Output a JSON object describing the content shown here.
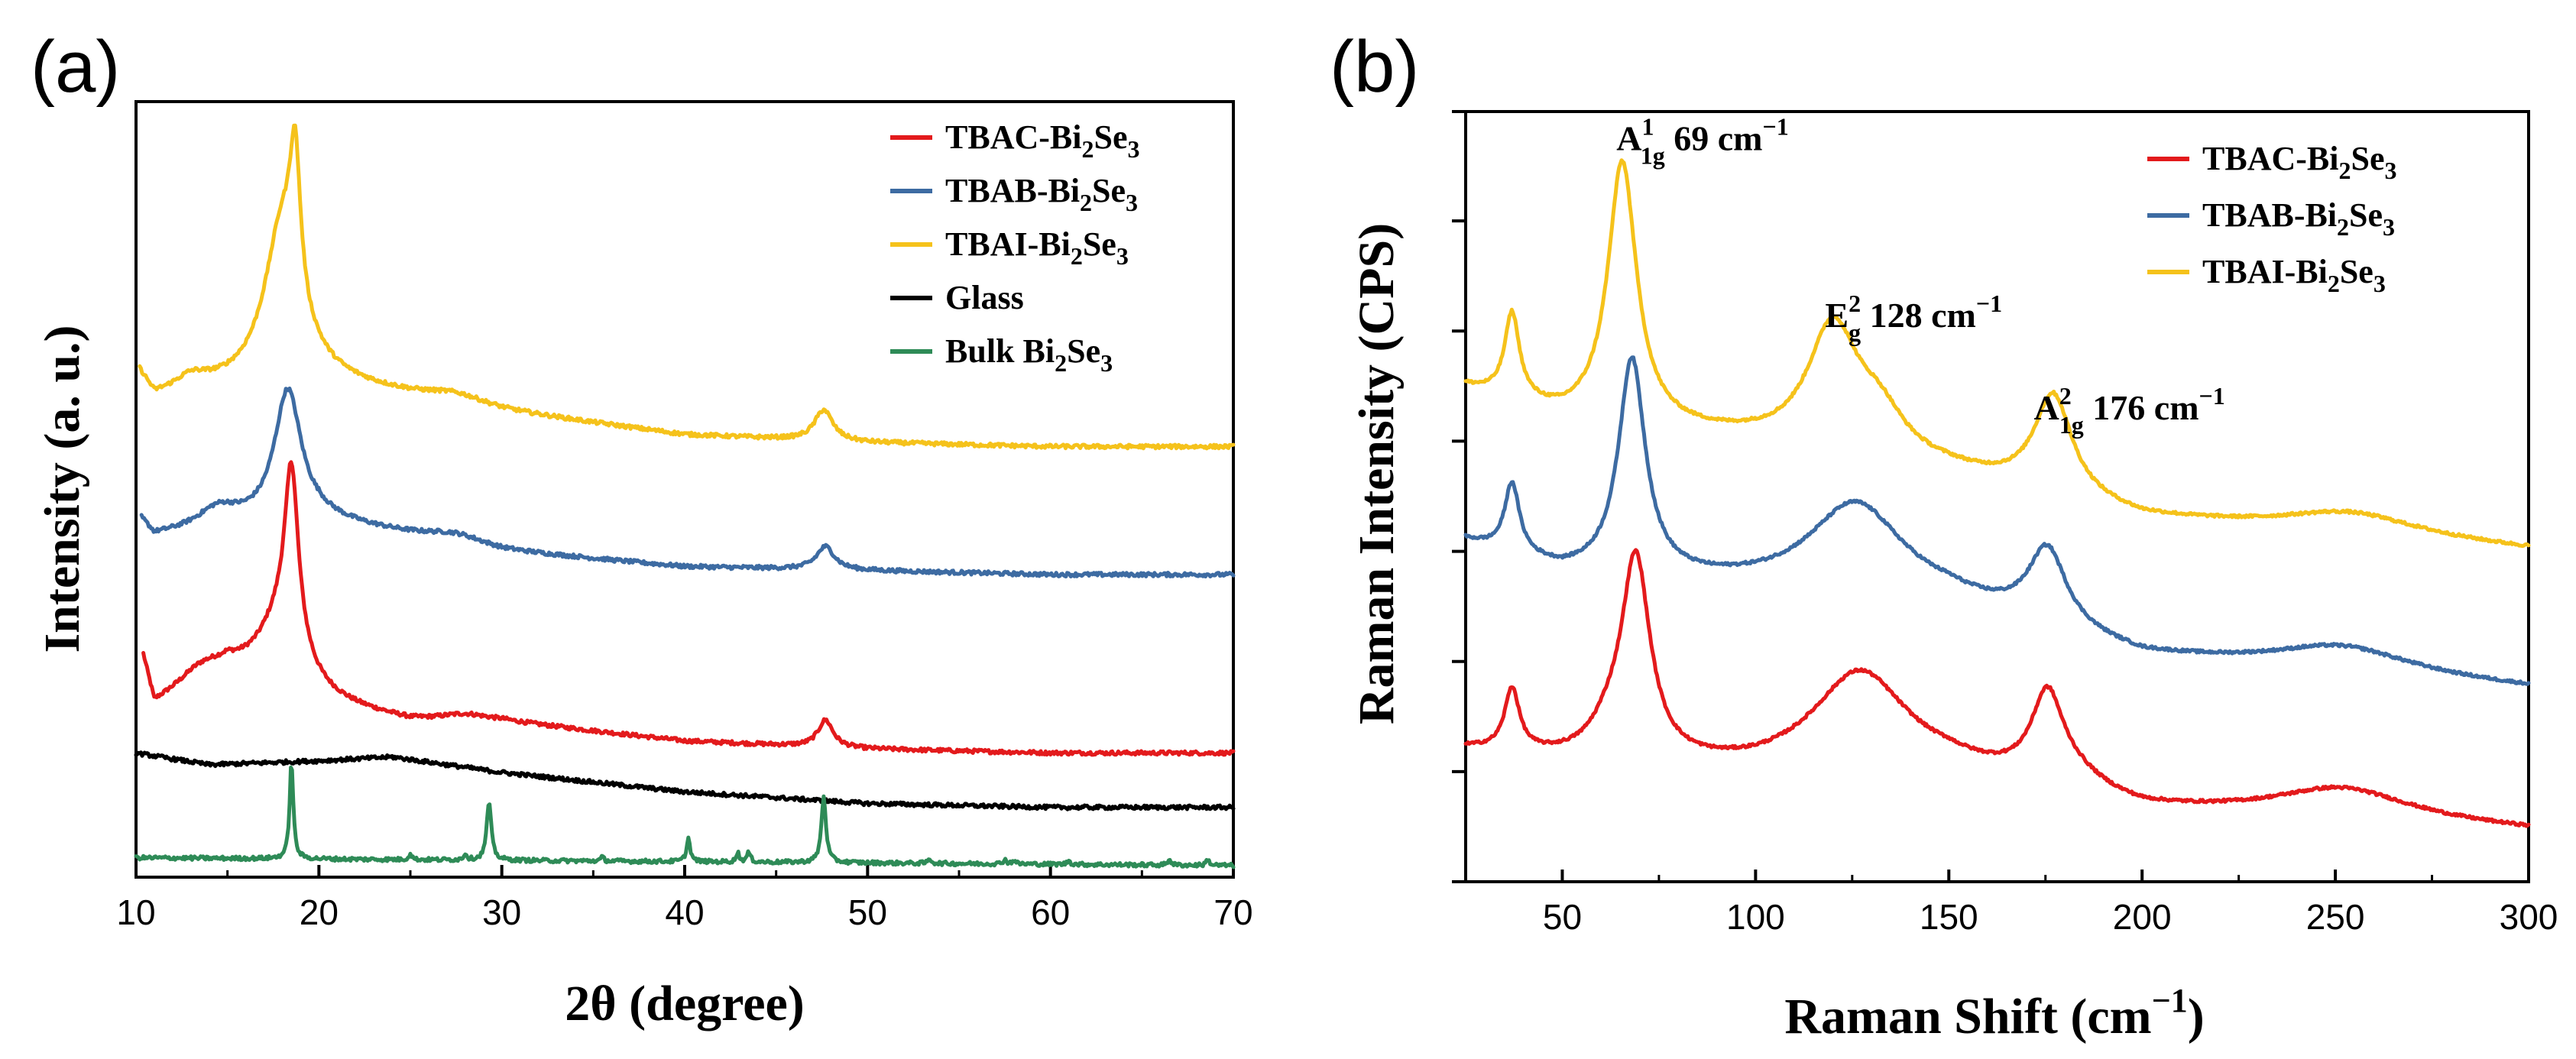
{
  "figure": {
    "panel_a_label": "(a)",
    "panel_b_label": "(b)"
  },
  "chart_data": [
    {
      "type": "line",
      "panel": "(a)",
      "xlabel": "2θ (degree)",
      "ylabel": "Intensity (a. u.)",
      "xlim": [
        10,
        70
      ],
      "ylim": [
        0,
        100
      ],
      "xticks": [
        10,
        20,
        30,
        40,
        50,
        60,
        70
      ],
      "show_y_tick_labels": false,
      "legend": {
        "placement": "top-right"
      },
      "series": [
        {
          "key": "tbac",
          "name": "TBAC-Bi2Se3",
          "color": "#e31a1c",
          "peaks": [
            [
              18.5,
              22,
              0.45
            ],
            [
              18.0,
              9,
              1.6
            ],
            [
              13.5,
              2,
              1.5
            ],
            [
              28,
              0.8,
              1.5
            ],
            [
              47.7,
              3.5,
              0.5
            ]
          ],
          "base": [
            [
              10.4,
              28
            ],
            [
              11,
              22
            ],
            [
              13,
              24
            ],
            [
              15,
              26
            ],
            [
              20,
              22
            ],
            [
              25,
              20
            ],
            [
              30,
              20
            ],
            [
              40,
              17.5
            ],
            [
              50,
              16.5
            ],
            [
              60,
              16
            ],
            [
              70,
              16
            ]
          ]
        },
        {
          "key": "tbab",
          "name": "TBAB-Bi2Se3",
          "color": "#3d6ba2",
          "peaks": [
            [
              18.3,
              17,
              0.9
            ],
            [
              14.5,
              2.5,
              1.4
            ],
            [
              27.5,
              1.2,
              2
            ],
            [
              47.7,
              3,
              0.6
            ]
          ],
          "base": [
            [
              10.3,
              46
            ],
            [
              11,
              44
            ],
            [
              15,
              45
            ],
            [
              20,
              46
            ],
            [
              25,
              44
            ],
            [
              30,
              42
            ],
            [
              40,
              40
            ],
            [
              50,
              39.5
            ],
            [
              60,
              39
            ],
            [
              70,
              39
            ]
          ]
        },
        {
          "key": "tbai",
          "name": "TBAI-Bi2Se3",
          "color": "#f5c21b",
          "peaks": [
            [
              18.7,
              18,
              0.35
            ],
            [
              18.0,
              20,
              1.2
            ],
            [
              13,
              1.5,
              1
            ],
            [
              27.5,
              1.2,
              2
            ],
            [
              47.6,
              4,
              0.6
            ]
          ],
          "base": [
            [
              10.2,
              65
            ],
            [
              11,
              62
            ],
            [
              14,
              63
            ],
            [
              20,
              64
            ],
            [
              25,
              62
            ],
            [
              30,
              60
            ],
            [
              40,
              57
            ],
            [
              50,
              56
            ],
            [
              60,
              55.5
            ],
            [
              70,
              55.5
            ]
          ]
        },
        {
          "key": "glass",
          "name": "Glass",
          "color": "#000000",
          "peaks": [],
          "base": [
            [
              10,
              16
            ],
            [
              14,
              14.5
            ],
            [
              20,
              15
            ],
            [
              24,
              15.5
            ],
            [
              30,
              13.5
            ],
            [
              40,
              11
            ],
            [
              50,
              9.5
            ],
            [
              60,
              9
            ],
            [
              70,
              9
            ]
          ]
        },
        {
          "key": "bulk",
          "name": "Bulk Bi2Se3",
          "color": "#2e8b57",
          "peaks": [
            [
              18.5,
              12.5,
              0.12
            ],
            [
              29.3,
              7.5,
              0.15
            ],
            [
              47.6,
              8.5,
              0.15
            ],
            [
              40.2,
              3,
              0.12
            ],
            [
              43.5,
              1.2,
              0.12
            ],
            [
              42.9,
              1.2,
              0.1
            ],
            [
              25,
              0.8,
              0.1
            ],
            [
              28,
              0.8,
              0.1
            ],
            [
              35.5,
              0.5,
              0.1
            ],
            [
              53.4,
              0.6,
              0.1
            ],
            [
              57.5,
              0.6,
              0.1
            ],
            [
              58,
              0.5,
              0.1
            ],
            [
              61,
              0.5,
              0.1
            ],
            [
              66.5,
              0.8,
              0.1
            ],
            [
              68.6,
              0.8,
              0.1
            ]
          ],
          "base": [
            [
              10,
              2.5
            ],
            [
              70,
              1.5
            ]
          ]
        }
      ]
    },
    {
      "type": "line",
      "panel": "(b)",
      "xlabel": "Raman Shift (cm−1)",
      "ylabel": "Raman Intensity (CPS)",
      "xlim": [
        25,
        300
      ],
      "ylim": [
        0,
        100
      ],
      "xticks": [
        50,
        100,
        150,
        200,
        250,
        300
      ],
      "show_y_tick_labels": false,
      "legend": {
        "placement": "top-right"
      },
      "annotations": [
        {
          "mode": "A",
          "sup": "1",
          "sub": "1g",
          "value": "69 cm",
          "exp": "−1",
          "at": [
            64,
            95
          ]
        },
        {
          "mode": "E",
          "sup": "2",
          "sub": "g",
          "value": "128 cm",
          "exp": "−1",
          "at": [
            118,
            72
          ]
        },
        {
          "mode": "A",
          "sup": "2",
          "sub": "1g",
          "value": "176 cm",
          "exp": "−1",
          "at": [
            172,
            60
          ]
        }
      ],
      "series": [
        {
          "key": "tbac",
          "name": "TBAC-Bi2Se3",
          "color": "#e31a1c",
          "peaks": [
            [
              37,
              8,
              2.3
            ],
            [
              69,
              26,
              4.5
            ],
            [
              62,
              3,
              6
            ],
            [
              127,
              13,
              15
            ],
            [
              175.5,
              11,
              5
            ],
            [
              182,
              2,
              10
            ],
            [
              252,
              4,
              22
            ]
          ],
          "base": [
            [
              25,
              17
            ],
            [
              60,
              15
            ],
            [
              100,
              14
            ],
            [
              150,
              14
            ],
            [
              200,
              9
            ],
            [
              250,
              8
            ],
            [
              300,
              6.5
            ]
          ]
        },
        {
          "key": "tbab",
          "name": "TBAB-Bi2Se3",
          "color": "#3d6ba2",
          "peaks": [
            [
              37,
              9,
              2.3
            ],
            [
              68,
              28,
              4.2
            ],
            [
              126,
              12,
              15
            ],
            [
              175.5,
              10,
              6
            ],
            [
              252,
              3.5,
              22
            ]
          ],
          "base": [
            [
              25,
              44
            ],
            [
              50,
              40
            ],
            [
              100,
              38
            ],
            [
              150,
              36
            ],
            [
              200,
              29
            ],
            [
              250,
              27
            ],
            [
              300,
              25
            ]
          ]
        },
        {
          "key": "tbai",
          "name": "TBAI-Bi2Se3",
          "color": "#f5c21b",
          "peaks": [
            [
              37,
              11,
              2.3
            ],
            [
              65.5,
              34,
              4.5
            ],
            [
              120,
              16,
              8
            ],
            [
              132,
              5,
              8
            ],
            [
              177,
              13,
              6
            ],
            [
              254,
              3,
              22
            ]
          ],
          "base": [
            [
              25,
              64
            ],
            [
              50,
              60
            ],
            [
              100,
              57
            ],
            [
              150,
              53
            ],
            [
              200,
              47
            ],
            [
              250,
              45
            ],
            [
              300,
              43
            ]
          ]
        }
      ]
    }
  ]
}
